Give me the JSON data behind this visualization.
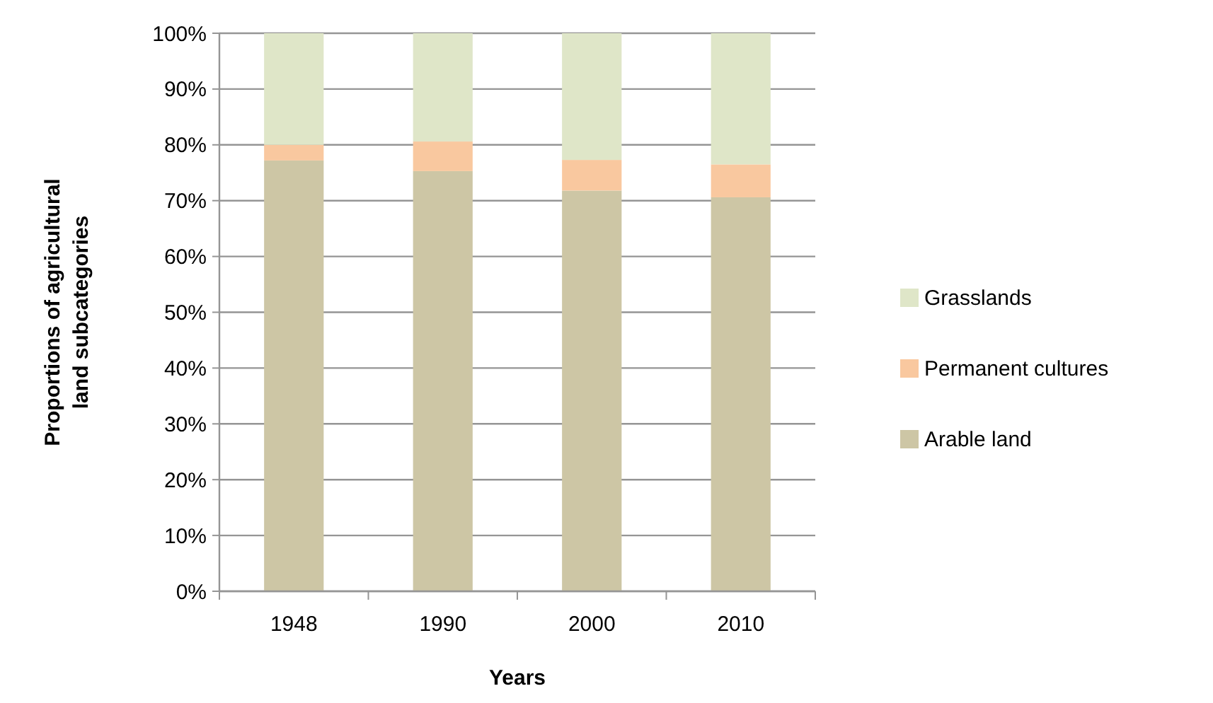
{
  "chart_data": {
    "type": "bar",
    "stacked": true,
    "xlabel": "Years",
    "ylabel": "Proportions of agricultural land subcategories",
    "categories": [
      "1948",
      "1990",
      "2000",
      "2010"
    ],
    "series": [
      {
        "name": "Arable land",
        "color": "#cdc6a5",
        "values": [
          77.2,
          75.3,
          71.8,
          70.6
        ]
      },
      {
        "name": "Permanent cultures",
        "color": "#f9c89f",
        "values": [
          2.8,
          5.3,
          5.5,
          5.9
        ]
      },
      {
        "name": "Grasslands",
        "color": "#dfe6c8",
        "values": [
          20,
          19.4,
          22.7,
          23.5
        ]
      }
    ],
    "ylim": [
      0,
      100
    ],
    "yticks": [
      {
        "value": 0,
        "label": "0%"
      },
      {
        "value": 10,
        "label": "10%"
      },
      {
        "value": 20,
        "label": "20%"
      },
      {
        "value": 30,
        "label": "30%"
      },
      {
        "value": 40,
        "label": "40%"
      },
      {
        "value": 50,
        "label": "50%"
      },
      {
        "value": 60,
        "label": "60%"
      },
      {
        "value": 70,
        "label": "70%"
      },
      {
        "value": 80,
        "label": "80%"
      },
      {
        "value": 90,
        "label": "90%"
      },
      {
        "value": 100,
        "label": "100%"
      }
    ],
    "grid": "y",
    "legend": "right"
  }
}
